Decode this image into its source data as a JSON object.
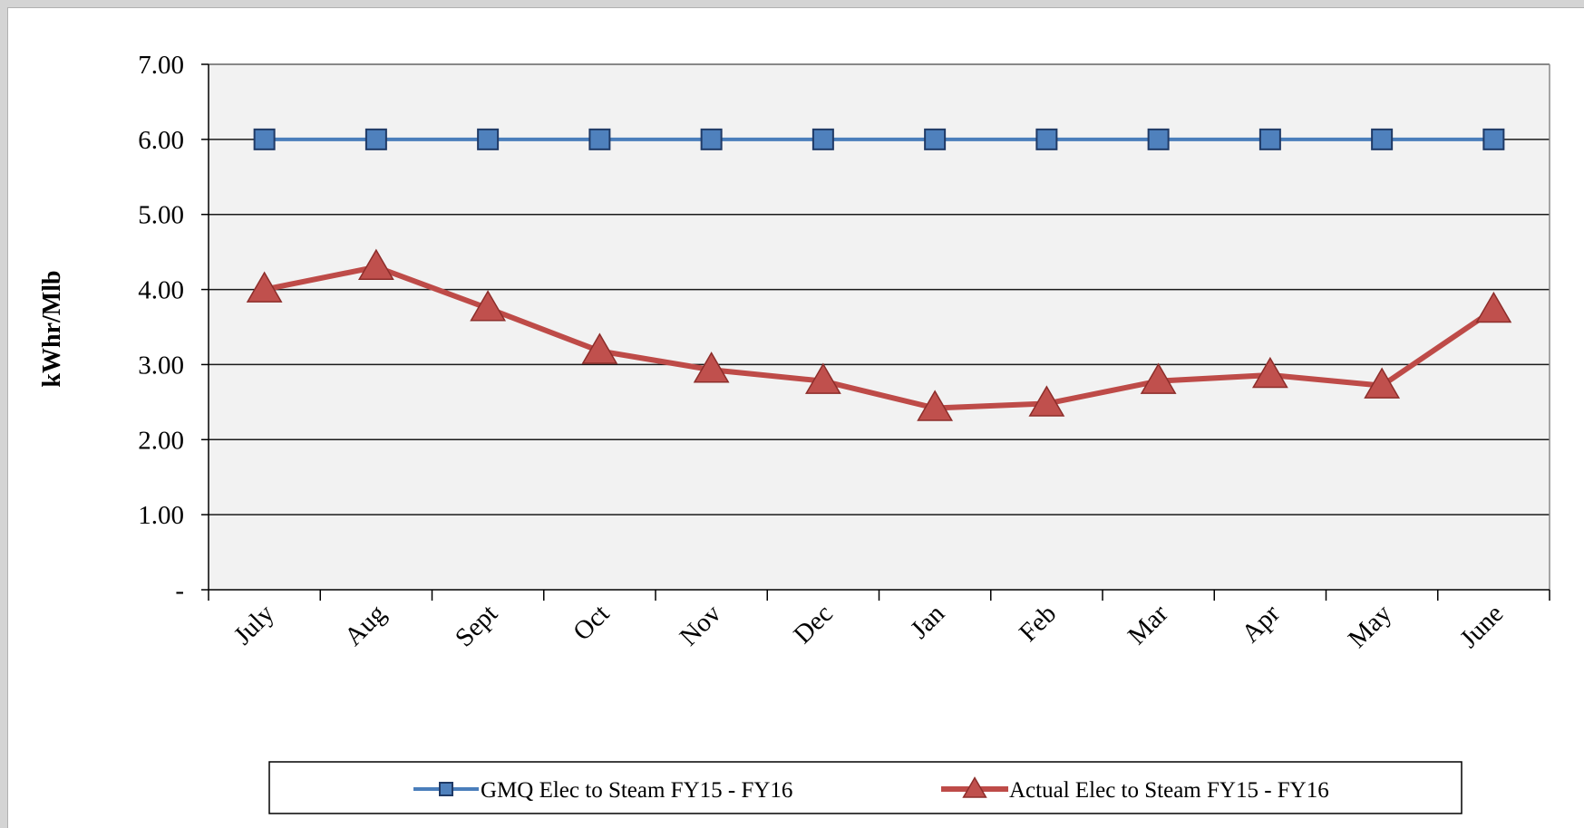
{
  "chart_data": {
    "type": "line",
    "title": "",
    "xlabel": "",
    "ylabel": "kWhr/Mlb",
    "categories": [
      "July",
      "Aug",
      "Sept",
      "Oct",
      "Nov",
      "Dec",
      "Jan",
      "Feb",
      "Mar",
      "Apr",
      "May",
      "June"
    ],
    "y_tick_labels": [
      "-",
      "1.00",
      "2.00",
      "3.00",
      "4.00",
      "5.00",
      "6.00",
      "7.00"
    ],
    "ylim": [
      0,
      7
    ],
    "grid": true,
    "legend_position": "bottom",
    "series": [
      {
        "name": "GMQ Elec to Steam FY15 - FY16",
        "color": "#4a7ebb",
        "marker_color": "#4f81bd",
        "marker": "square",
        "values": [
          6.0,
          6.0,
          6.0,
          6.0,
          6.0,
          6.0,
          6.0,
          6.0,
          6.0,
          6.0,
          6.0,
          6.0
        ]
      },
      {
        "name": "Actual Elec to Steam FY15 - FY16",
        "color": "#be4b48",
        "marker_color": "#c0504d",
        "marker": "triangle",
        "values": [
          4.0,
          4.3,
          3.75,
          3.18,
          2.93,
          2.78,
          2.42,
          2.48,
          2.78,
          2.86,
          2.72,
          3.73
        ]
      }
    ]
  }
}
